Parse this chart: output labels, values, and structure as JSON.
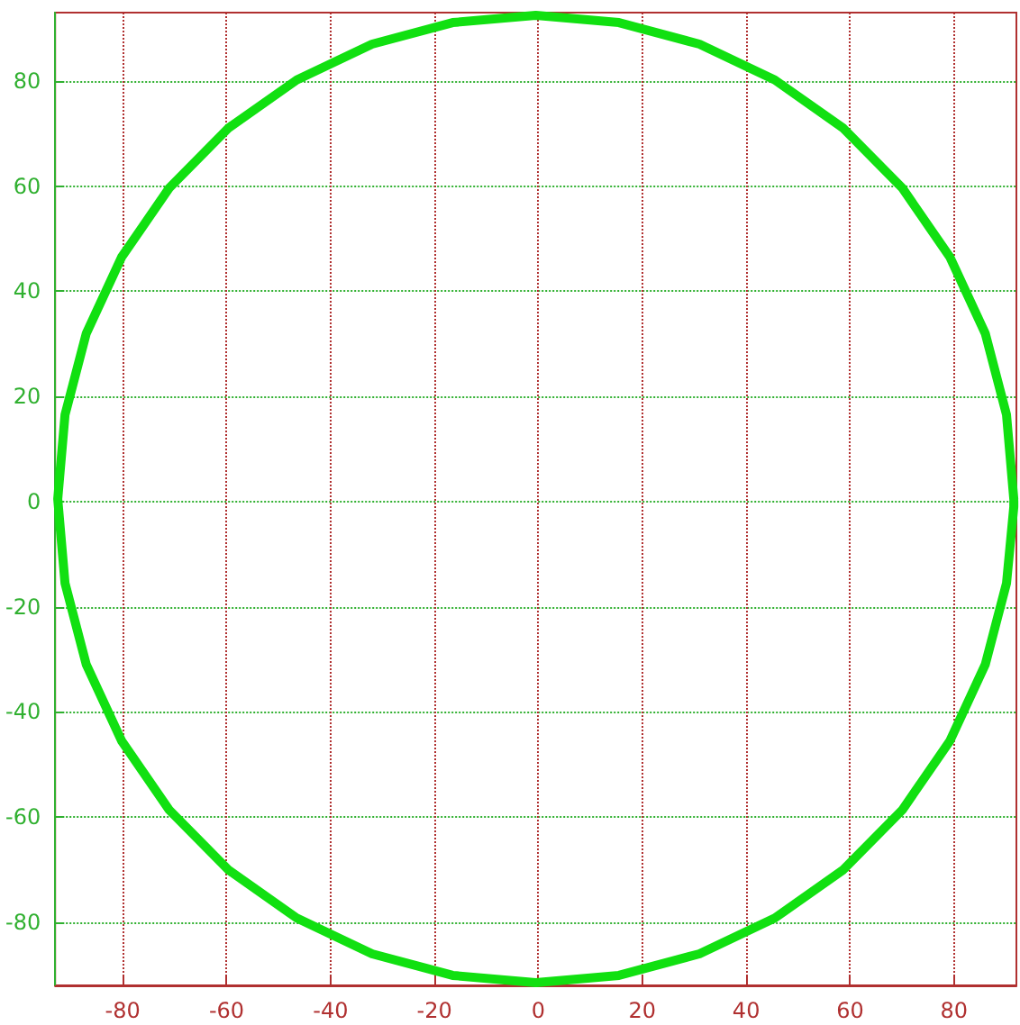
{
  "chart_data": {
    "type": "line",
    "series": [
      {
        "color": "#11e011",
        "x": [
          91.5,
          90.1,
          86.0,
          79.2,
          70.0,
          58.7,
          45.5,
          31.0,
          15.5,
          -0.5,
          -16.5,
          -32.0,
          -46.5,
          -59.7,
          -71.0,
          -80.2,
          -87.0,
          -91.1,
          -92.5,
          -91.1,
          -87.0,
          -80.2,
          -71.0,
          -59.7,
          -46.5,
          -32.0,
          -16.5,
          -0.5,
          15.5,
          31.0,
          45.5,
          58.7,
          70.0,
          79.2,
          86.0,
          90.1,
          91.5,
          91.5
        ],
        "values": [
          0.5,
          16.5,
          32.0,
          46.5,
          59.7,
          71.0,
          80.2,
          87.0,
          91.1,
          92.5,
          91.1,
          87.0,
          80.2,
          71.0,
          59.7,
          46.5,
          32.0,
          16.5,
          0.5,
          -15.5,
          -31.0,
          -45.5,
          -58.7,
          -70.0,
          -79.2,
          -86.0,
          -90.1,
          -91.5,
          -90.1,
          -86.0,
          -79.2,
          -70.0,
          -58.7,
          -45.5,
          -31.0,
          -15.5,
          -1.0,
          0.2
        ]
      }
    ],
    "xlim": [
      -93,
      92
    ],
    "ylim": [
      -92,
      93
    ],
    "xticks": [
      -80,
      -60,
      -40,
      -20,
      0,
      20,
      40,
      60,
      80
    ],
    "yticks": [
      -80,
      -60,
      -40,
      -20,
      0,
      20,
      40,
      60,
      80
    ],
    "grid": true,
    "marker": "none",
    "line_style": "solid"
  }
}
